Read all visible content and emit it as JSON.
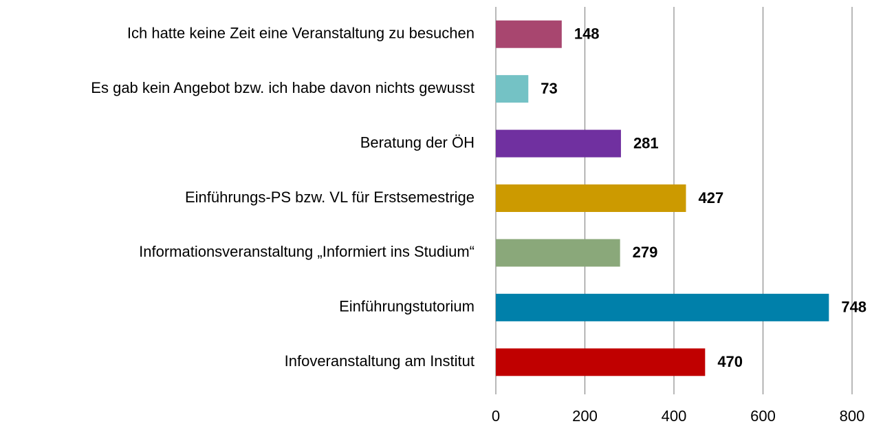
{
  "chart_data": {
    "type": "barh",
    "categories": [
      "Ich hatte keine Zeit eine Veranstaltung zu besuchen",
      "Es gab kein Angebot bzw. ich habe davon nichts gewusst",
      "Beratung der ÖH",
      "Einführungs-PS bzw. VL für Erstsemestrige",
      "Informationsveranstaltung „Informiert ins Studium“",
      "Einführungstutorium",
      "Infoveranstaltung am Institut"
    ],
    "values": [
      148,
      73,
      281,
      427,
      279,
      748,
      470
    ],
    "colors": [
      "#a8466f",
      "#74c2c5",
      "#7030a0",
      "#cc9a00",
      "#8aa87a",
      "#0080aa",
      "#c00000"
    ],
    "xlim": [
      0,
      800
    ],
    "xticks": [
      0,
      200,
      400,
      600,
      800
    ],
    "grid": true
  }
}
